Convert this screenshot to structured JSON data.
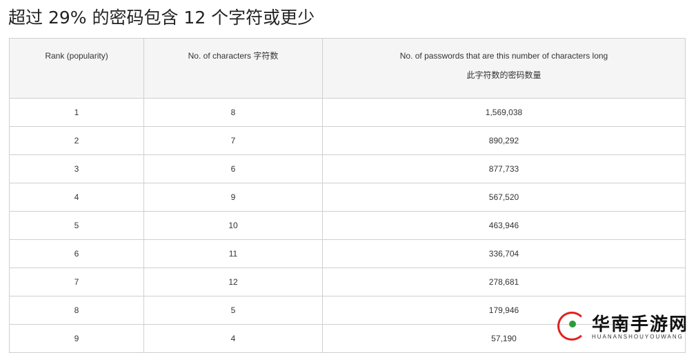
{
  "title": "超过 29% 的密码包含 12 个字符或更少",
  "table": {
    "headers": [
      "Rank (popularity)",
      "No. of characters 字符数",
      "No. of passwords that are this number of characters long",
      "此字符数的密码数量"
    ],
    "rows": [
      [
        "1",
        "8",
        "1,569,038"
      ],
      [
        "2",
        "7",
        "890,292"
      ],
      [
        "3",
        "6",
        "877,733"
      ],
      [
        "4",
        "9",
        "567,520"
      ],
      [
        "5",
        "10",
        "463,946"
      ],
      [
        "6",
        "11",
        "336,704"
      ],
      [
        "7",
        "12",
        "278,681"
      ],
      [
        "8",
        "5",
        "179,946"
      ],
      [
        "9",
        "4",
        "57,190"
      ]
    ]
  },
  "watermark": {
    "cn": "华南手游网",
    "en": "HUANANSHOUYOUWANG"
  }
}
